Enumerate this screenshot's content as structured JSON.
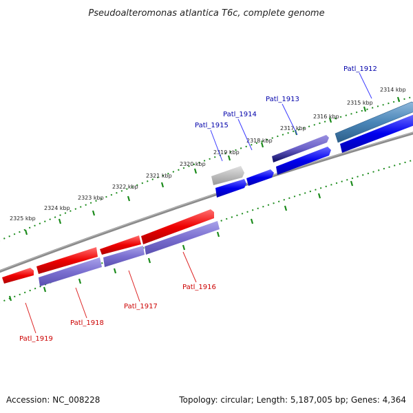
{
  "title": "Pseudoalteromonas atlantica T6c, complete genome",
  "footer": {
    "accession": "Accession: NC_008228",
    "summary": "Topology: circular; Length: 5,187,005 bp; Genes: 4,364"
  },
  "colors": {
    "backbone": "#808080",
    "tick": "#1a8a1a",
    "forward_gene": "#0000ee",
    "reverse_gene": "#ee0000",
    "forward_cds": "#7a6fd0",
    "pseudo_gene": "#b8b8b8",
    "rna_gene": "#4a86b8"
  },
  "scale_ticks": [
    {
      "label": "2314 kbp"
    },
    {
      "label": "2315 kbp"
    },
    {
      "label": "2316 kbp"
    },
    {
      "label": "2317 kbp"
    },
    {
      "label": "2318 kbp"
    },
    {
      "label": "2319 kbp"
    },
    {
      "label": "2320 kbp"
    },
    {
      "label": "2321 kbp"
    },
    {
      "label": "2322 kbp"
    },
    {
      "label": "2323 kbp"
    },
    {
      "label": "2324 kbp"
    },
    {
      "label": "2325 kbp"
    }
  ],
  "genes_top": [
    {
      "label": "Patl_1912"
    },
    {
      "label": "Patl_1913"
    },
    {
      "label": "Patl_1914"
    },
    {
      "label": "Patl_1915"
    }
  ],
  "genes_bottom": [
    {
      "label": "Patl_1916"
    },
    {
      "label": "Patl_1917"
    },
    {
      "label": "Patl_1918"
    },
    {
      "label": "Patl_1919"
    }
  ]
}
